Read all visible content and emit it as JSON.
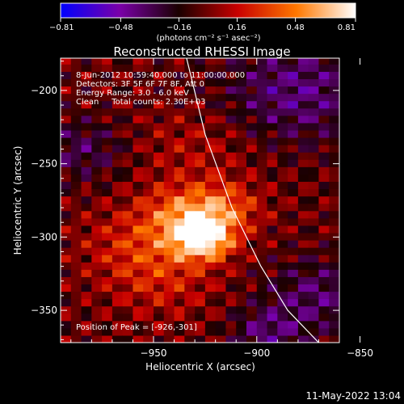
{
  "chart_data": {
    "type": "heatmap",
    "title": "Reconstructed RHESSI Image",
    "xlabel": "Heliocentric X (arcsec)",
    "ylabel": "Heliocentric Y (arcsec)",
    "xlim": [
      -995,
      -860
    ],
    "ylim": [
      -372,
      -178
    ],
    "xticks": [
      -950,
      -900,
      -850
    ],
    "yticks": [
      -200,
      -250,
      -300,
      -350
    ],
    "xtick_labels": [
      "−950",
      "−900",
      "−850"
    ],
    "ytick_labels": [
      "−200",
      "−250",
      "−300",
      "−350"
    ],
    "colorbar": {
      "min": -0.81,
      "max": 0.81,
      "tick_values": [
        -0.81,
        -0.48,
        -0.16,
        0.16,
        0.48,
        0.81
      ],
      "tick_labels": [
        "−0.81",
        "−0.48",
        "−0.16",
        "0.16",
        "0.48",
        "0.81"
      ],
      "unit_label": "(photons cm⁻² s⁻¹ asec⁻²)",
      "colors": [
        "#0000ff",
        "#7a00a8",
        "#1a0000",
        "#c80000",
        "#ff7800",
        "#ffffff"
      ]
    },
    "annotations": [
      "8-Jun-2012 10:59:40.000 to 11:00:00.000",
      "Detectors: 3F 5F 6F 7F 8F, Att 0",
      "Energy Range: 3.0 - 6.0 keV",
      "Clean     Total counts: 2.30E+03"
    ],
    "peak_label": "Position of Peak = [-926,-301]",
    "peak": [
      -926,
      -301
    ],
    "limb_curve": [
      [
        -934,
        -178
      ],
      [
        -925,
        -230
      ],
      [
        -912,
        -280
      ],
      [
        -898,
        -320
      ],
      [
        -885,
        -350
      ],
      [
        -870,
        -372
      ]
    ],
    "sources": [
      {
        "x": -926,
        "y": -301,
        "amp": 0.81,
        "sigma": 10
      },
      {
        "x": -935,
        "y": -285,
        "amp": 0.45,
        "sigma": 14
      },
      {
        "x": -915,
        "y": -280,
        "amp": 0.35,
        "sigma": 12
      },
      {
        "x": -958,
        "y": -305,
        "amp": 0.25,
        "sigma": 18
      },
      {
        "x": -945,
        "y": -330,
        "amp": 0.2,
        "sigma": 18
      },
      {
        "x": -930,
        "y": -240,
        "amp": 0.15,
        "sigma": 20
      }
    ],
    "negative_regions": [
      {
        "x": -880,
        "y": -200,
        "amp": -0.35,
        "sigma": 25
      },
      {
        "x": -870,
        "y": -340,
        "amp": -0.3,
        "sigma": 18
      },
      {
        "x": -985,
        "y": -240,
        "amp": -0.25,
        "sigma": 15
      },
      {
        "x": -895,
        "y": -365,
        "amp": -0.3,
        "sigma": 12
      }
    ]
  },
  "footer": {
    "timestamp": "11-May-2022 13:04"
  }
}
